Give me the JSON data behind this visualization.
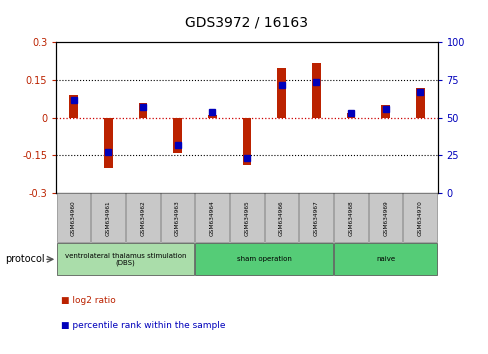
{
  "title": "GDS3972 / 16163",
  "samples": [
    "GSM634960",
    "GSM634961",
    "GSM634962",
    "GSM634963",
    "GSM634964",
    "GSM634965",
    "GSM634966",
    "GSM634967",
    "GSM634968",
    "GSM634969",
    "GSM634970"
  ],
  "log2_ratio": [
    0.09,
    -0.2,
    0.06,
    -0.14,
    0.01,
    -0.19,
    0.2,
    0.22,
    0.02,
    0.05,
    0.12
  ],
  "percentile_rank": [
    62,
    27,
    57,
    32,
    54,
    23,
    72,
    74,
    53,
    56,
    67
  ],
  "group_spans": [
    {
      "label": "ventrolateral thalamus stimulation\n(DBS)",
      "start": 0,
      "end": 3,
      "color": "#aaddaa"
    },
    {
      "label": "sham operation",
      "start": 4,
      "end": 7,
      "color": "#55cc77"
    },
    {
      "label": "naive",
      "start": 8,
      "end": 10,
      "color": "#55cc77"
    }
  ],
  "ylim_left": [
    -0.3,
    0.3
  ],
  "ylim_right": [
    0,
    100
  ],
  "yticks_left": [
    -0.3,
    -0.15,
    0,
    0.15,
    0.3
  ],
  "yticks_right": [
    0,
    25,
    50,
    75,
    100
  ],
  "hline_values": [
    -0.15,
    0.15
  ],
  "log2_color": "#BB2200",
  "percentile_color": "#0000BB",
  "zero_line_color": "#CC0000",
  "bar_width": 0.25,
  "pct_square_size": 0.18,
  "legend_log2": "log2 ratio",
  "legend_pct": "percentile rank within the sample",
  "protocol_label": "protocol"
}
